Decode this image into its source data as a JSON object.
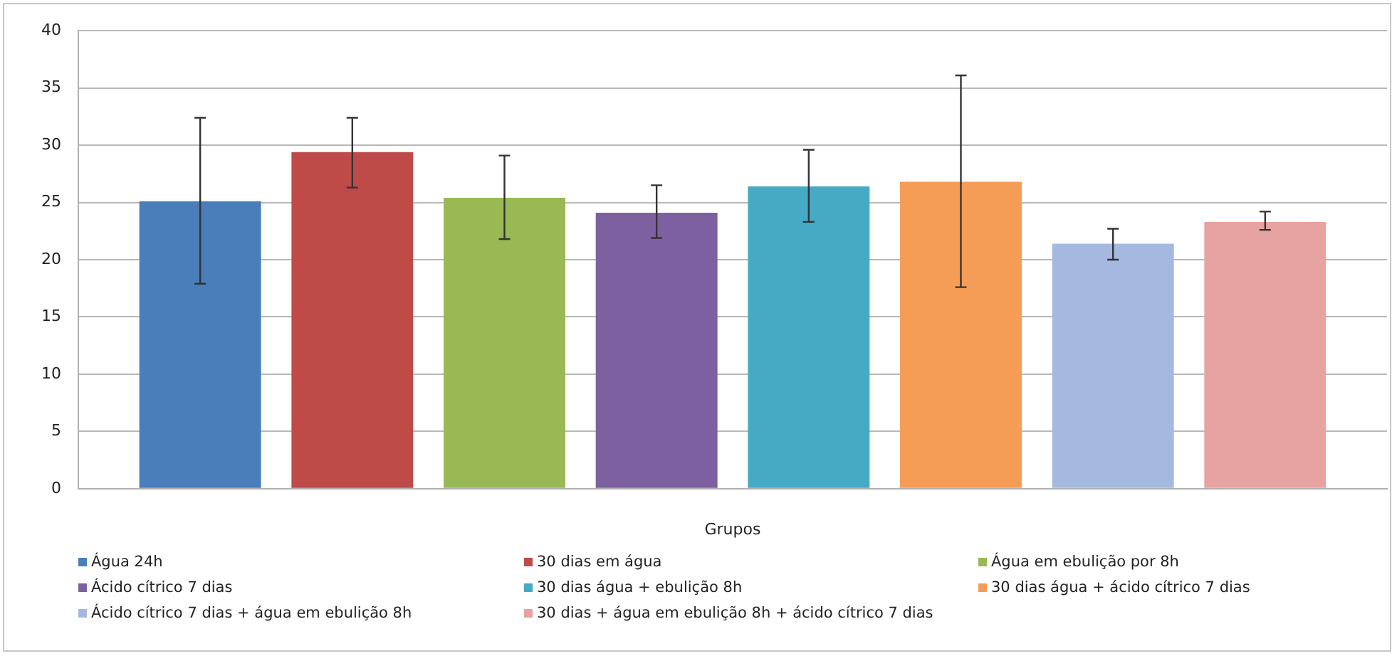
{
  "chart_data": {
    "type": "bar",
    "xlabel": "Grupos",
    "categories": [
      null
    ],
    "series": [
      {
        "name": "Água 24h",
        "color": "#4a7ebb",
        "values": [
          25.1
        ],
        "errors": [
          [
            17.9,
            32.4
          ]
        ]
      },
      {
        "name": "30 dias em água",
        "color": "#be4b48",
        "values": [
          29.4
        ],
        "errors": [
          [
            26.3,
            32.4
          ]
        ]
      },
      {
        "name": "Água em ebulição por 8h",
        "color": "#98b954",
        "values": [
          25.4
        ],
        "errors": [
          [
            21.8,
            29.1
          ]
        ]
      },
      {
        "name": "Ácido cítrico 7 dias",
        "color": "#7d60a0",
        "values": [
          24.1
        ],
        "errors": [
          [
            21.9,
            26.5
          ]
        ]
      },
      {
        "name": "30 dias água + ebulição 8h",
        "color": "#46aac5",
        "values": [
          26.4
        ],
        "errors": [
          [
            23.3,
            29.6
          ]
        ]
      },
      {
        "name": "30 dias água + ácido cítrico 7 dias",
        "color": "#f59d56",
        "values": [
          26.8
        ],
        "errors": [
          [
            17.6,
            36.1
          ]
        ]
      },
      {
        "name": "Ácido cítrico 7 dias + água em ebulição 8h",
        "color": "#a5b9e0",
        "values": [
          21.4
        ],
        "errors": [
          [
            20.0,
            22.7
          ]
        ]
      },
      {
        "name": "30 dias + água em ebulição 8h + ácido cítrico 7 dias",
        "color": "#e7a3a2",
        "values": [
          23.3
        ],
        "errors": [
          [
            22.6,
            24.2
          ]
        ]
      }
    ],
    "ylim": [
      0,
      40
    ],
    "yticks": [
      0,
      5,
      10,
      15,
      20,
      25,
      30,
      35,
      40
    ],
    "grid": "y",
    "legend": "bottom"
  }
}
